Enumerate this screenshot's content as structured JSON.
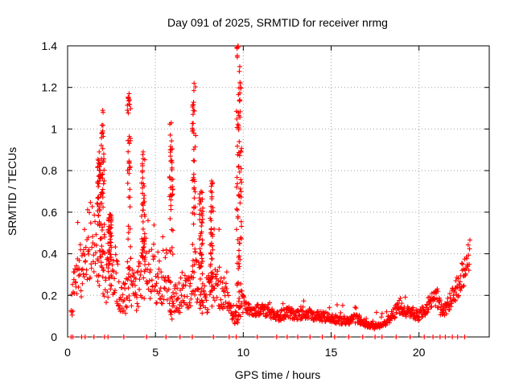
{
  "chart_data": {
    "type": "scatter",
    "title": "Day 091 of 2025, SRMTID for receiver nrmg",
    "xlabel": "GPS time / hours",
    "ylabel": "SRMTID / TECUs",
    "xlim": [
      0,
      24
    ],
    "ylim": [
      0,
      1.4
    ],
    "x_ticks": [
      0,
      5,
      10,
      15,
      20
    ],
    "x_tick_labels": [
      "0",
      "5",
      "10",
      "15",
      "20"
    ],
    "y_ticks": [
      0,
      0.2,
      0.4,
      0.6,
      0.8,
      1.0,
      1.2,
      1.4
    ],
    "y_tick_labels": [
      "0",
      "0.2",
      "0.4",
      "0.6",
      "0.8",
      "1",
      "1.2",
      "1.4"
    ],
    "grid": true,
    "marker": "+",
    "color": "#ff0000",
    "profile": [
      [
        0.2,
        0.16
      ],
      [
        0.5,
        0.3
      ],
      [
        0.8,
        0.35
      ],
      [
        1.0,
        0.4
      ],
      [
        1.2,
        0.5
      ],
      [
        1.4,
        0.48
      ],
      [
        1.7,
        0.45
      ],
      [
        1.9,
        0.32
      ],
      [
        2.2,
        0.3
      ],
      [
        2.5,
        0.35
      ],
      [
        2.8,
        0.28
      ],
      [
        3.1,
        0.18
      ],
      [
        3.4,
        0.2
      ],
      [
        3.6,
        0.25
      ],
      [
        3.9,
        0.2
      ],
      [
        4.2,
        0.3
      ],
      [
        4.5,
        0.35
      ],
      [
        4.8,
        0.3
      ],
      [
        5.0,
        0.26
      ],
      [
        5.3,
        0.28
      ],
      [
        5.6,
        0.3
      ],
      [
        5.9,
        0.15
      ],
      [
        6.2,
        0.18
      ],
      [
        6.5,
        0.22
      ],
      [
        6.8,
        0.2
      ],
      [
        7.0,
        0.25
      ],
      [
        7.3,
        0.3
      ],
      [
        7.6,
        0.2
      ],
      [
        7.9,
        0.2
      ],
      [
        8.2,
        0.22
      ],
      [
        8.5,
        0.25
      ],
      [
        8.8,
        0.22
      ],
      [
        9.0,
        0.2
      ],
      [
        9.3,
        0.12
      ],
      [
        9.6,
        0.1
      ],
      [
        9.9,
        0.18
      ],
      [
        10.2,
        0.14
      ],
      [
        10.5,
        0.12
      ],
      [
        11.0,
        0.13
      ],
      [
        11.5,
        0.12
      ],
      [
        12.0,
        0.1
      ],
      [
        12.5,
        0.12
      ],
      [
        13.0,
        0.1
      ],
      [
        13.5,
        0.12
      ],
      [
        14.0,
        0.1
      ],
      [
        14.5,
        0.1
      ],
      [
        15.0,
        0.09
      ],
      [
        15.5,
        0.08
      ],
      [
        16.0,
        0.08
      ],
      [
        16.5,
        0.09
      ],
      [
        17.0,
        0.06
      ],
      [
        17.5,
        0.05
      ],
      [
        18.0,
        0.06
      ],
      [
        18.5,
        0.1
      ],
      [
        18.8,
        0.15
      ],
      [
        19.2,
        0.12
      ],
      [
        19.6,
        0.12
      ],
      [
        20.0,
        0.1
      ],
      [
        20.5,
        0.15
      ],
      [
        21.0,
        0.2
      ],
      [
        21.3,
        0.12
      ],
      [
        21.6,
        0.15
      ],
      [
        22.0,
        0.2
      ],
      [
        22.4,
        0.28
      ],
      [
        22.8,
        0.38
      ]
    ],
    "spikes": [
      [
        1.8,
        0.89
      ],
      [
        2.0,
        1.09
      ],
      [
        2.4,
        0.59
      ],
      [
        3.5,
        1.17
      ],
      [
        4.3,
        0.89
      ],
      [
        5.9,
        1.03
      ],
      [
        7.2,
        1.22
      ],
      [
        7.6,
        0.7
      ],
      [
        8.2,
        0.75
      ],
      [
        9.7,
        1.4
      ],
      [
        9.8,
        1.3
      ]
    ],
    "zero_hours": [
      0.2,
      0.3,
      0.8,
      1.0,
      1.5,
      2.1,
      2.3,
      3.2,
      4.5,
      5.6,
      6.4,
      7.1,
      8.3,
      9.2,
      9.6,
      10.8,
      11.9,
      12.5,
      13.1,
      13.8,
      14.5,
      15.2,
      16.0,
      16.8,
      17.5,
      17.9,
      18.7,
      19.5,
      20.3,
      20.8,
      21.2,
      21.5,
      21.9,
      22.2,
      22.6
    ]
  }
}
